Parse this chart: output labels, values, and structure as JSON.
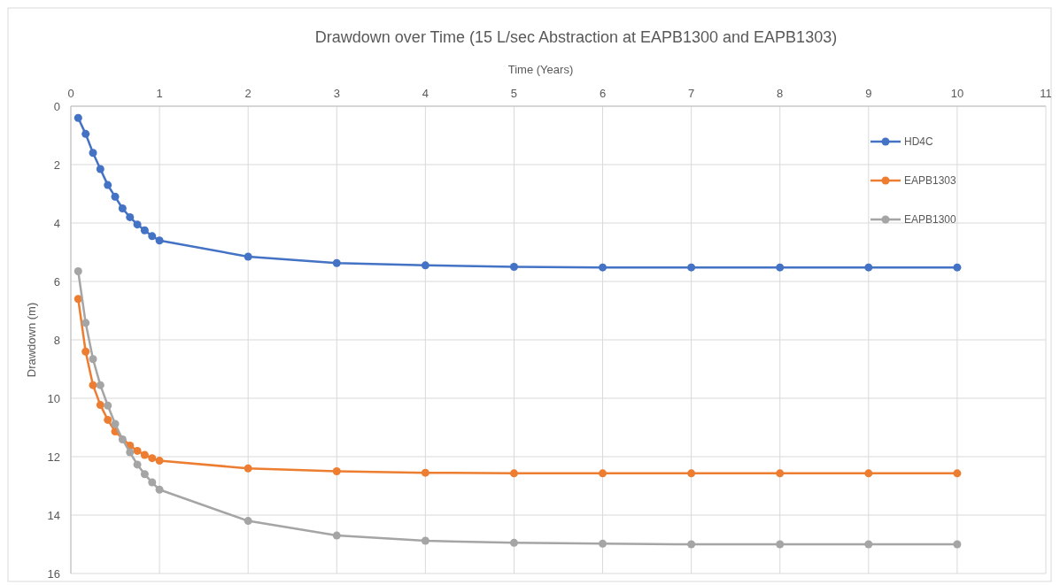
{
  "chart_data": {
    "type": "line",
    "title": "Drawdown over Time (15 L/sec Abstraction at EAPB1300 and EAPB1303)",
    "xlabel": "Time (Years)",
    "ylabel": "Drawdown (m)",
    "x": [
      0.083,
      0.167,
      0.25,
      0.333,
      0.417,
      0.5,
      0.583,
      0.667,
      0.75,
      0.833,
      0.917,
      1,
      2,
      3,
      4,
      5,
      6,
      7,
      8,
      9,
      10
    ],
    "series": [
      {
        "name": "HD4C",
        "color": "#4472c4",
        "values": [
          0.4,
          0.95,
          1.6,
          2.15,
          2.7,
          3.1,
          3.5,
          3.8,
          4.05,
          4.25,
          4.45,
          4.6,
          5.15,
          5.37,
          5.45,
          5.5,
          5.52,
          5.52,
          5.52,
          5.52,
          5.52
        ]
      },
      {
        "name": "EAPB1303",
        "color": "#ed7d31",
        "values": [
          6.6,
          8.4,
          9.55,
          10.23,
          10.74,
          11.14,
          null,
          11.62,
          11.8,
          11.94,
          12.05,
          12.14,
          12.4,
          12.5,
          12.55,
          12.57,
          12.57,
          12.57,
          12.57,
          12.57,
          12.57
        ]
      },
      {
        "name": "EAPB1300",
        "color": "#a5a5a5",
        "values": [
          5.65,
          7.42,
          8.66,
          9.55,
          10.25,
          10.88,
          11.41,
          11.85,
          12.27,
          12.6,
          12.88,
          13.13,
          14.2,
          14.7,
          14.88,
          14.95,
          14.98,
          15.0,
          15.0,
          15.0,
          15.0
        ]
      }
    ],
    "xlim": [
      0,
      11
    ],
    "xticks": [
      0,
      1,
      2,
      3,
      4,
      5,
      6,
      7,
      8,
      9,
      10,
      11
    ],
    "ylim": [
      16,
      0
    ],
    "yticks": [
      0,
      2,
      4,
      6,
      8,
      10,
      12,
      14,
      16
    ],
    "grid": true,
    "legend": "top right",
    "marker": "circle",
    "line_style": "solid"
  }
}
